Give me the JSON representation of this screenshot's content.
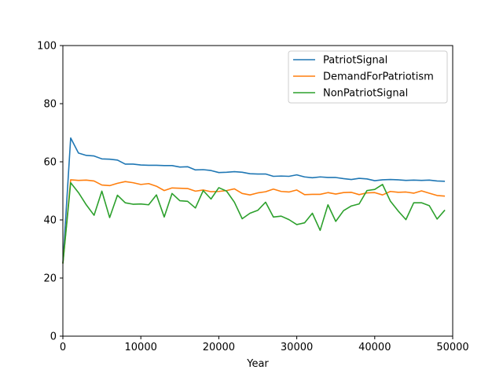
{
  "chart_data": {
    "type": "line",
    "title": "",
    "xlabel": "Year",
    "ylabel": "",
    "xlim": [
      0,
      50000
    ],
    "ylim": [
      0,
      100
    ],
    "xticks": [
      0,
      10000,
      20000,
      30000,
      40000,
      50000
    ],
    "yticks": [
      0,
      20,
      40,
      60,
      80,
      100
    ],
    "grid": false,
    "legend": "top-right",
    "x": [
      0,
      1000,
      2000,
      3000,
      4000,
      5000,
      6000,
      7000,
      8000,
      9000,
      10000,
      11000,
      12000,
      13000,
      14000,
      15000,
      16000,
      17000,
      18000,
      19000,
      20000,
      21000,
      22000,
      23000,
      24000,
      25000,
      26000,
      27000,
      28000,
      29000,
      30000,
      31000,
      32000,
      33000,
      34000,
      35000,
      36000,
      37000,
      38000,
      39000,
      40000,
      41000,
      42000,
      43000,
      44000,
      45000,
      46000,
      47000,
      48000,
      49000
    ],
    "series": [
      {
        "name": "PatriotSignal",
        "color": "#1f77b4",
        "values": [
          25,
          68.2,
          63,
          62.2,
          62,
          61,
          60.9,
          60.6,
          59.2,
          59.2,
          58.9,
          58.8,
          58.8,
          58.7,
          58.7,
          58.2,
          58.3,
          57.2,
          57.3,
          57,
          56.3,
          56.4,
          56.6,
          56.4,
          55.9,
          55.8,
          55.8,
          55,
          55.1,
          55,
          55.5,
          54.8,
          54.5,
          54.8,
          54.6,
          54.6,
          54.2,
          53.9,
          54.3,
          54.1,
          53.5,
          53.8,
          53.9,
          53.8,
          53.6,
          53.7,
          53.6,
          53.7,
          53.4,
          53.3
        ]
      },
      {
        "name": "DemandForPatriotism",
        "color": "#ff7f0e",
        "values": [
          25,
          53.8,
          53.6,
          53.7,
          53.4,
          52,
          51.8,
          52.6,
          53.2,
          52.8,
          52.2,
          52.5,
          51.6,
          50.1,
          51,
          50.9,
          50.8,
          49.9,
          50.3,
          49.7,
          49.8,
          50.1,
          50.7,
          49.1,
          48.6,
          49.3,
          49.7,
          50.6,
          49.8,
          49.6,
          50.3,
          48.7,
          48.8,
          48.8,
          49.4,
          48.9,
          49.4,
          49.5,
          48.7,
          49.3,
          49.4,
          48.6,
          49.8,
          49.5,
          49.6,
          49.2,
          50,
          49.2,
          48.4,
          48.2
        ]
      },
      {
        "name": "NonPatriotSignal",
        "color": "#2ca02c",
        "values": [
          25,
          52.8,
          49.4,
          45.2,
          41.6,
          49.9,
          40.8,
          48.5,
          45.9,
          45.4,
          45.5,
          45.2,
          48.6,
          41,
          49.1,
          46.6,
          46.4,
          44.1,
          50.1,
          47.2,
          51.1,
          49.9,
          46.1,
          40.4,
          42.3,
          43.3,
          46.1,
          41,
          41.3,
          40.1,
          38.4,
          39,
          42.3,
          36.4,
          45.2,
          39.5,
          43.2,
          44.8,
          45.5,
          50.1,
          50.5,
          52.2,
          46.5,
          43.1,
          40.1,
          45.9,
          45.9,
          44.9,
          40.3,
          43.4
        ]
      }
    ]
  }
}
